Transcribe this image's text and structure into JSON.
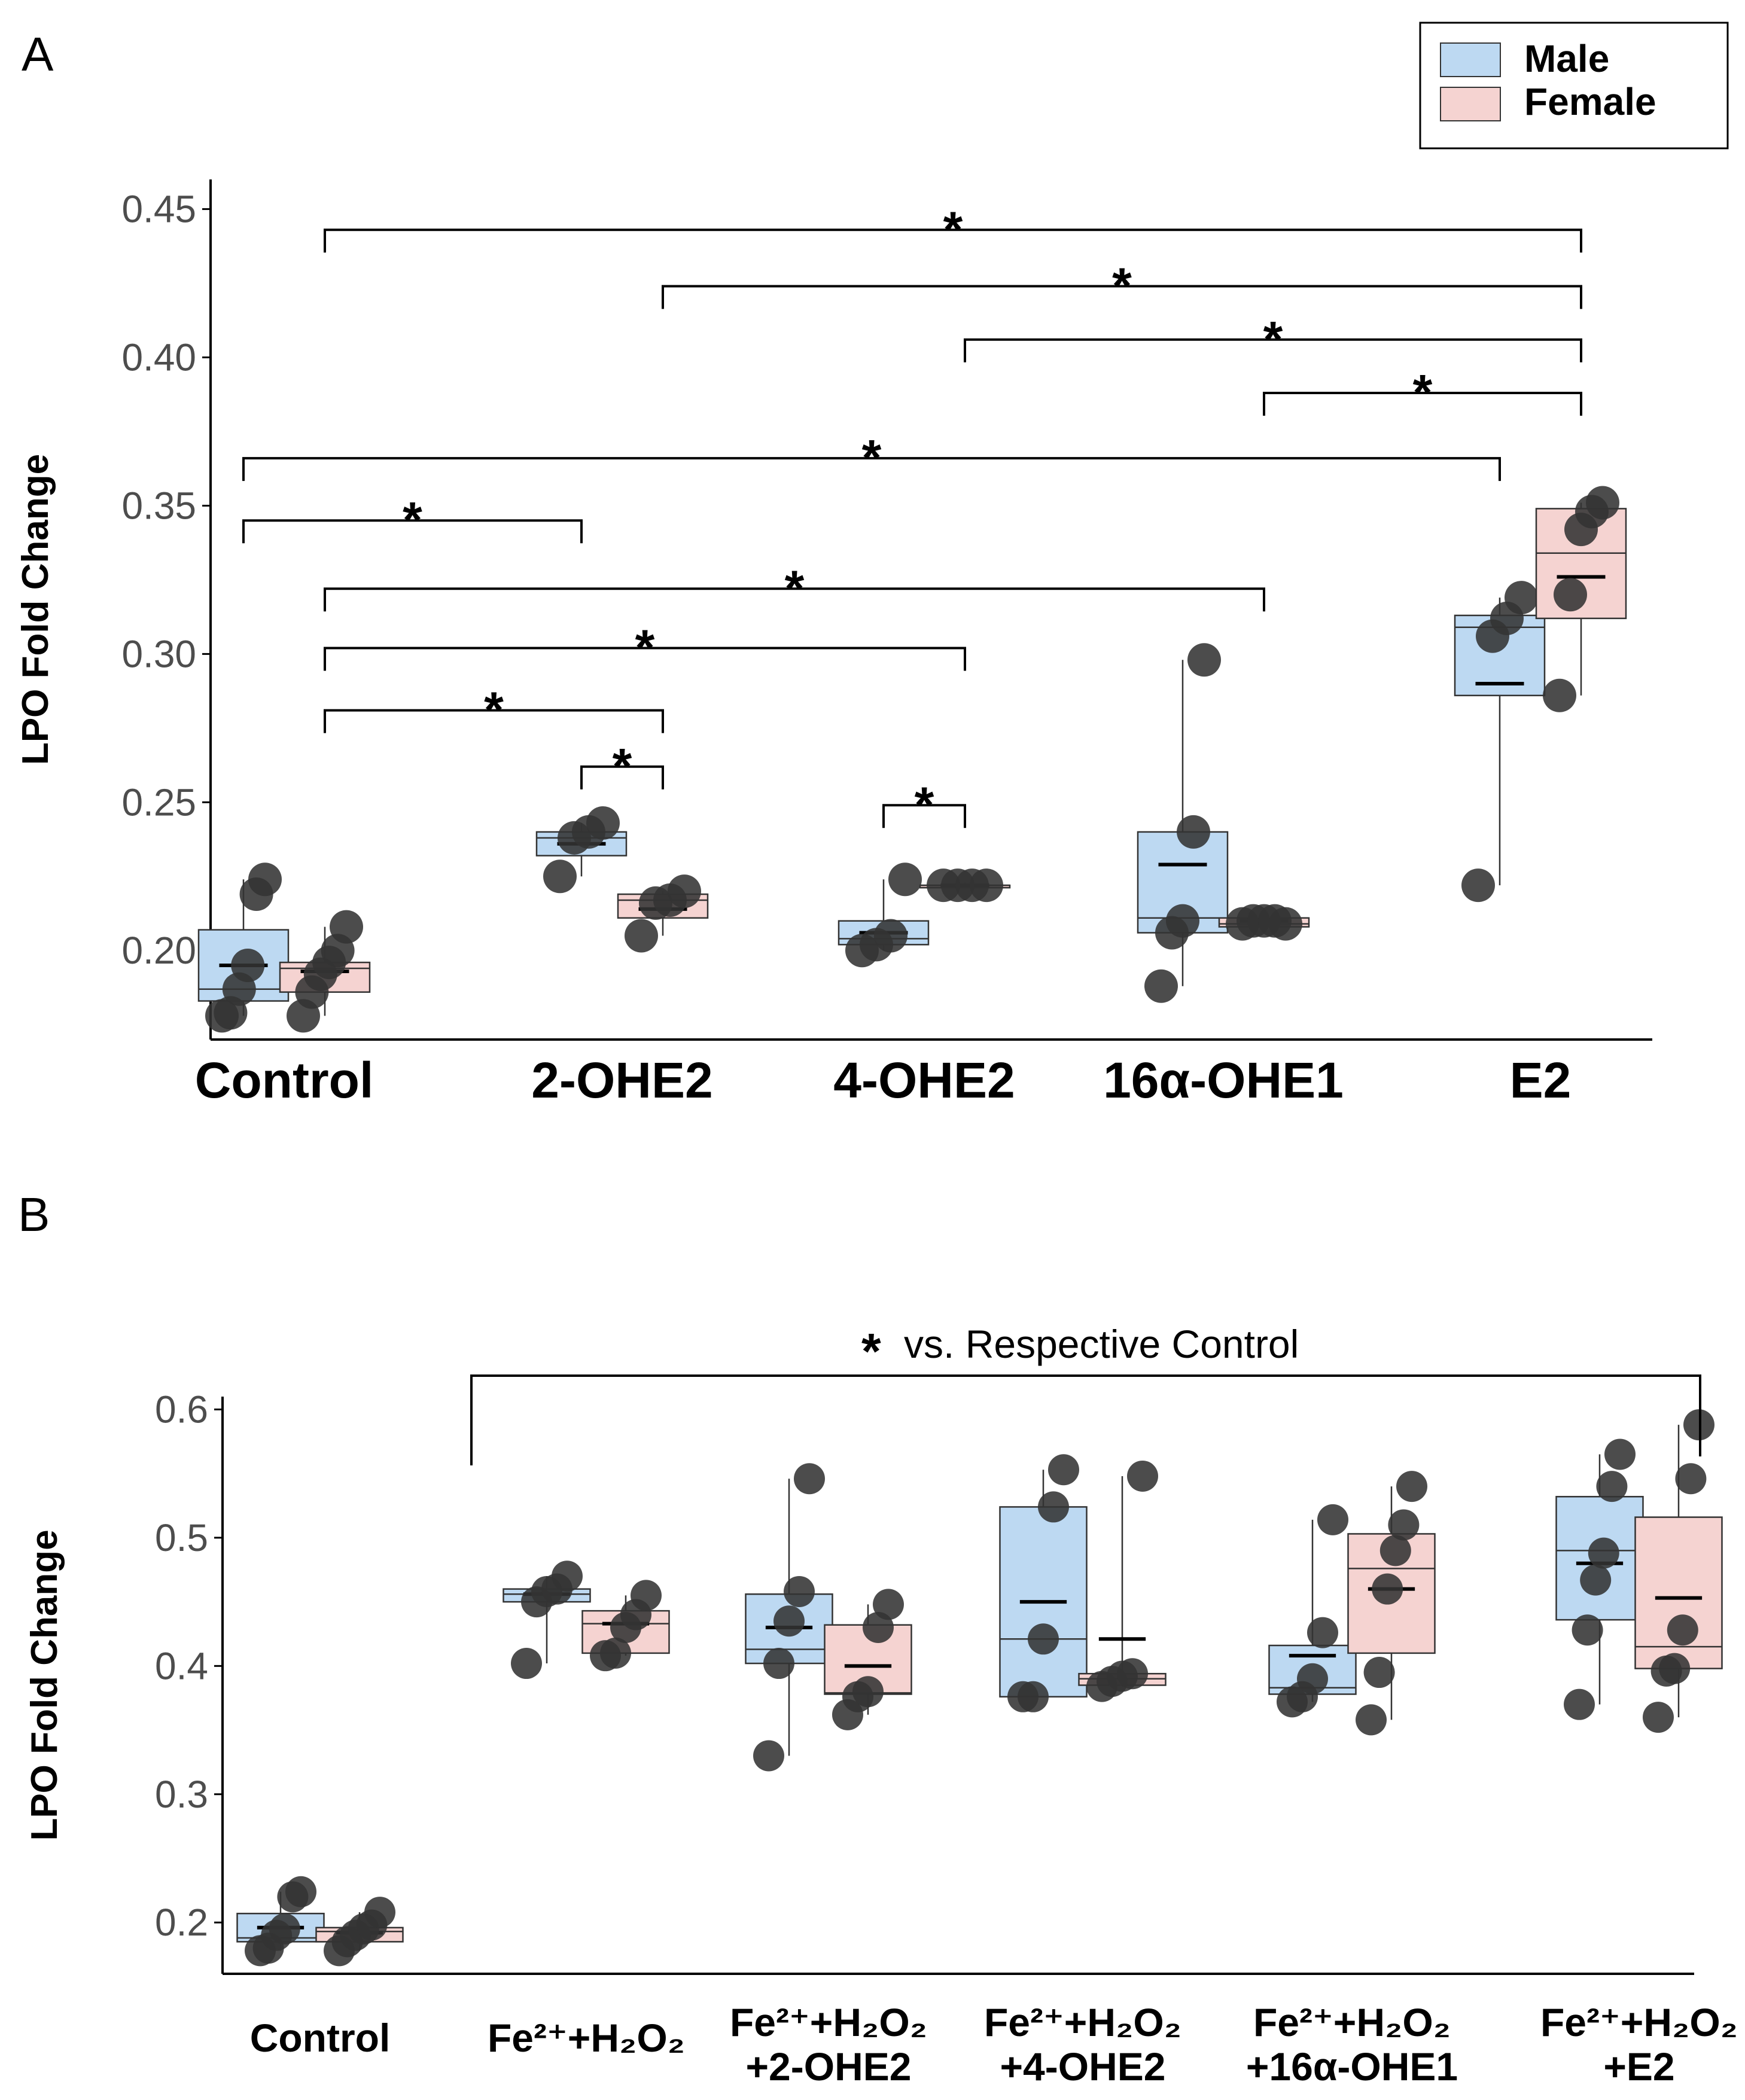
{
  "colors": {
    "male": "#bdd9f2",
    "female": "#f5d3d1",
    "point": "#333333",
    "axis": "#000000"
  },
  "legend": {
    "items": [
      {
        "label": "Male",
        "color": "#bdd9f2"
      },
      {
        "label": "Female",
        "color": "#f5d3d1"
      }
    ]
  },
  "chart_data": [
    {
      "panel_label": "A",
      "type": "box",
      "ylabel": "LPO Fold Change",
      "ylim": [
        0.17,
        0.46
      ],
      "yticks": [
        "0.20",
        "0.25",
        "0.30",
        "0.35",
        "0.40",
        "0.45"
      ],
      "categories": [
        [
          "Control"
        ],
        [
          "2-OHE2"
        ],
        [
          "4-OHE2"
        ],
        [
          "16α-OHE1"
        ],
        [
          "E2"
        ]
      ],
      "series": [
        {
          "name": "Male",
          "boxes": [
            {
              "q1": 0.183,
              "median": 0.187,
              "q3": 0.207,
              "mean": 0.195,
              "lo": 0.178,
              "hi": 0.224,
              "points": [
                0.178,
                0.179,
                0.187,
                0.195,
                0.219,
                0.224
              ]
            },
            {
              "q1": 0.232,
              "median": 0.238,
              "q3": 0.24,
              "mean": 0.236,
              "lo": 0.225,
              "hi": 0.243,
              "points": [
                0.225,
                0.238,
                0.24,
                0.243
              ]
            },
            {
              "q1": 0.202,
              "median": 0.204,
              "q3": 0.21,
              "mean": 0.206,
              "lo": 0.2,
              "hi": 0.224,
              "points": [
                0.2,
                0.202,
                0.205,
                0.224
              ]
            },
            {
              "q1": 0.206,
              "median": 0.211,
              "q3": 0.24,
              "mean": 0.229,
              "lo": 0.188,
              "hi": 0.298,
              "points": [
                0.188,
                0.206,
                0.21,
                0.24,
                0.298
              ]
            },
            {
              "q1": 0.286,
              "median": 0.309,
              "q3": 0.313,
              "mean": 0.29,
              "lo": 0.222,
              "hi": 0.319,
              "points": [
                0.222,
                0.306,
                0.312,
                0.319
              ]
            }
          ]
        },
        {
          "name": "Female",
          "boxes": [
            {
              "q1": 0.186,
              "median": 0.194,
              "q3": 0.196,
              "mean": 0.193,
              "lo": 0.178,
              "hi": 0.208,
              "points": [
                0.178,
                0.186,
                0.192,
                0.196,
                0.2,
                0.208
              ]
            },
            {
              "q1": 0.211,
              "median": 0.217,
              "q3": 0.219,
              "mean": 0.214,
              "lo": 0.205,
              "hi": 0.22,
              "points": [
                0.205,
                0.216,
                0.217,
                0.22
              ]
            },
            {
              "q1": 0.222,
              "median": 0.222,
              "q3": 0.222,
              "mean": 0.222,
              "lo": 0.222,
              "hi": 0.223,
              "points": [
                0.222,
                0.222,
                0.222,
                0.222
              ]
            },
            {
              "q1": 0.208,
              "median": 0.209,
              "q3": 0.211,
              "mean": 0.21,
              "lo": 0.208,
              "hi": 0.211,
              "points": [
                0.209,
                0.21,
                0.21,
                0.21,
                0.209
              ]
            },
            {
              "q1": 0.312,
              "median": 0.334,
              "q3": 0.349,
              "mean": 0.326,
              "lo": 0.286,
              "hi": 0.351,
              "points": [
                0.286,
                0.32,
                0.342,
                0.348,
                0.351
              ]
            }
          ]
        }
      ],
      "significance": [
        {
          "from": 0,
          "from_series": "Female",
          "to": 4,
          "to_series": "Female",
          "y": 0.443,
          "label": "*"
        },
        {
          "from": 1,
          "from_series": "Female",
          "to": 4,
          "to_series": "Female",
          "y": 0.424,
          "label": "*"
        },
        {
          "from": 2,
          "from_series": "Female",
          "to": 4,
          "to_series": "Female",
          "y": 0.406,
          "label": "*"
        },
        {
          "from": 3,
          "from_series": "Female",
          "to": 4,
          "to_series": "Female",
          "y": 0.388,
          "label": "*"
        },
        {
          "from": 0,
          "from_series": "Male",
          "to": 4,
          "to_series": "Male",
          "y": 0.366,
          "label": "*"
        },
        {
          "from": 0,
          "from_series": "Male",
          "to": 1,
          "to_series": "Male",
          "y": 0.345,
          "label": "*"
        },
        {
          "from": 0,
          "from_series": "Female",
          "to": 3,
          "to_series": "Female",
          "y": 0.322,
          "label": "*"
        },
        {
          "from": 0,
          "from_series": "Female",
          "to": 2,
          "to_series": "Female",
          "y": 0.302,
          "label": "*"
        },
        {
          "from": 0,
          "from_series": "Female",
          "to": 1,
          "to_series": "Female",
          "y": 0.281,
          "label": "*"
        },
        {
          "from": 1,
          "from_series": "Male",
          "to": 1,
          "to_series": "Female",
          "y": 0.262,
          "label": "*"
        },
        {
          "from": 2,
          "from_series": "Male",
          "to": 2,
          "to_series": "Female",
          "y": 0.249,
          "label": "*"
        }
      ]
    },
    {
      "panel_label": "B",
      "type": "box",
      "ylabel": "LPO Fold Change",
      "ylim": [
        0.16,
        0.61
      ],
      "yticks": [
        "0.2",
        "0.3",
        "0.4",
        "0.5",
        "0.6"
      ],
      "categories": [
        [
          "Control"
        ],
        [
          "Fe²⁺+H₂O₂"
        ],
        [
          "Fe²⁺+H₂O₂",
          "+2-OHE2"
        ],
        [
          "Fe²⁺+H₂O₂",
          "+4-OHE2"
        ],
        [
          "Fe²⁺+H₂O₂",
          "+16α-OHE1"
        ],
        [
          "Fe²⁺+H₂O₂",
          "+E2"
        ]
      ],
      "annotation": "vs. Respective Control",
      "annotation_symbol": "*",
      "series": [
        {
          "name": "Male",
          "boxes": [
            {
              "q1": 0.185,
              "median": 0.188,
              "q3": 0.207,
              "mean": 0.196,
              "lo": 0.178,
              "hi": 0.224,
              "points": [
                0.178,
                0.18,
                0.19,
                0.195,
                0.22,
                0.224
              ]
            },
            {
              "q1": 0.45,
              "median": 0.456,
              "q3": 0.46,
              "mean": 0.456,
              "lo": 0.402,
              "hi": 0.47,
              "points": [
                0.402,
                0.45,
                0.458,
                0.46,
                0.47
              ]
            },
            {
              "q1": 0.402,
              "median": 0.413,
              "q3": 0.456,
              "mean": 0.43,
              "lo": 0.33,
              "hi": 0.546,
              "points": [
                0.33,
                0.402,
                0.435,
                0.458,
                0.546
              ]
            },
            {
              "q1": 0.376,
              "median": 0.421,
              "q3": 0.524,
              "mean": 0.45,
              "lo": 0.376,
              "hi": 0.553,
              "points": [
                0.376,
                0.376,
                0.421,
                0.524,
                0.553
              ]
            },
            {
              "q1": 0.378,
              "median": 0.383,
              "q3": 0.416,
              "mean": 0.408,
              "lo": 0.372,
              "hi": 0.514,
              "points": [
                0.372,
                0.376,
                0.39,
                0.426,
                0.514
              ]
            },
            {
              "q1": 0.436,
              "median": 0.49,
              "q3": 0.532,
              "mean": 0.48,
              "lo": 0.37,
              "hi": 0.565,
              "points": [
                0.37,
                0.428,
                0.467,
                0.488,
                0.54,
                0.565
              ]
            }
          ]
        },
        {
          "name": "Female",
          "boxes": [
            {
              "q1": 0.185,
              "median": 0.193,
              "q3": 0.196,
              "mean": 0.192,
              "lo": 0.178,
              "hi": 0.208,
              "points": [
                0.178,
                0.185,
                0.19,
                0.195,
                0.198,
                0.208
              ]
            },
            {
              "q1": 0.41,
              "median": 0.433,
              "q3": 0.443,
              "mean": 0.433,
              "lo": 0.408,
              "hi": 0.455,
              "points": [
                0.408,
                0.41,
                0.43,
                0.44,
                0.455
              ]
            },
            {
              "q1": 0.378,
              "median": 0.379,
              "q3": 0.432,
              "mean": 0.4,
              "lo": 0.362,
              "hi": 0.448,
              "points": [
                0.362,
                0.376,
                0.38,
                0.43,
                0.448
              ]
            },
            {
              "q1": 0.385,
              "median": 0.39,
              "q3": 0.394,
              "mean": 0.421,
              "lo": 0.384,
              "hi": 0.548,
              "points": [
                0.384,
                0.388,
                0.392,
                0.394,
                0.548
              ]
            },
            {
              "q1": 0.41,
              "median": 0.476,
              "q3": 0.503,
              "mean": 0.46,
              "lo": 0.358,
              "hi": 0.54,
              "points": [
                0.358,
                0.395,
                0.46,
                0.49,
                0.51,
                0.54
              ]
            },
            {
              "q1": 0.398,
              "median": 0.415,
              "q3": 0.516,
              "mean": 0.453,
              "lo": 0.36,
              "hi": 0.588,
              "points": [
                0.36,
                0.396,
                0.398,
                0.428,
                0.546,
                0.588
              ]
            }
          ]
        }
      ]
    }
  ]
}
